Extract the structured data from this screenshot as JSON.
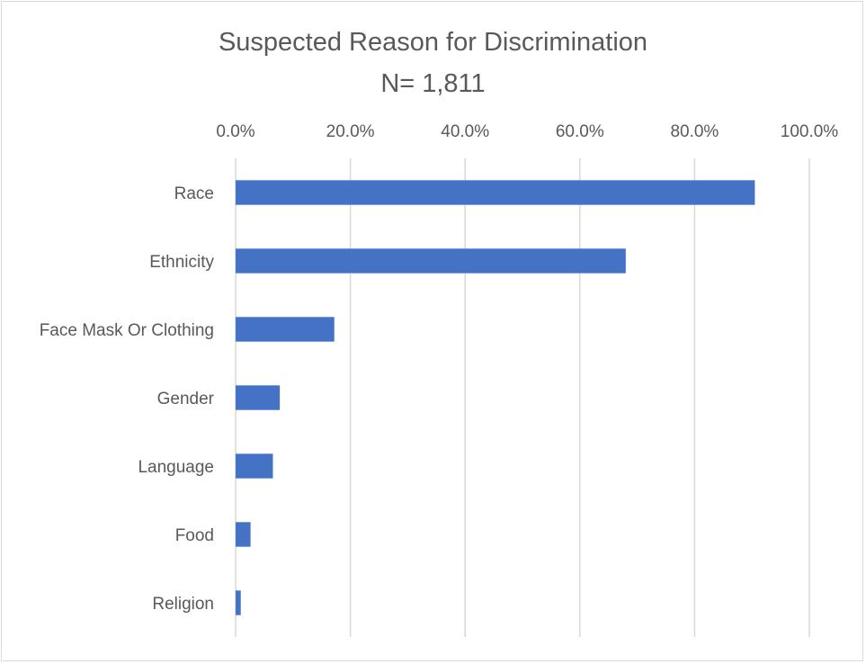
{
  "chart_data": {
    "type": "bar",
    "orientation": "horizontal",
    "title": "Suspected Reason for Discrimination",
    "subtitle": "N= 1,811",
    "categories": [
      "Race",
      "Ethnicity",
      "Face Mask Or Clothing",
      "Gender",
      "Language",
      "Food",
      "Religion"
    ],
    "values": [
      90.5,
      68.0,
      17.2,
      7.7,
      6.5,
      2.6,
      0.9
    ],
    "xlim": [
      0,
      100
    ],
    "x_ticks": [
      0,
      20,
      40,
      60,
      80,
      100
    ],
    "x_tick_labels": [
      "0.0%",
      "20.0%",
      "40.0%",
      "60.0%",
      "80.0%",
      "100.0%"
    ],
    "x_axis_position": "top",
    "grid": true,
    "legend": "none",
    "bar_color": "#4472C4",
    "grid_color": "#d9d9d9"
  }
}
